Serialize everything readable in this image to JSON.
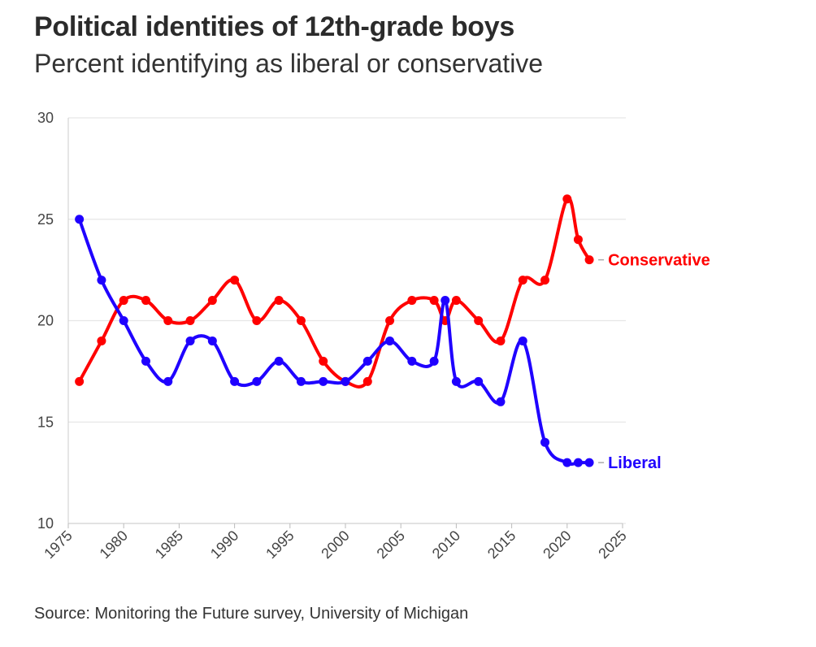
{
  "header": {
    "title": "Political identities of 12th-grade boys",
    "subtitle": "Percent identifying as liberal or conservative"
  },
  "footer": {
    "source": "Source: Monitoring the Future survey, University of Michigan"
  },
  "chart_data": {
    "type": "line",
    "title": "Political identities of 12th-grade boys",
    "subtitle": "Percent identifying as liberal or conservative",
    "xlabel": "",
    "ylabel": "",
    "xlim": [
      1975,
      2025
    ],
    "ylim": [
      10,
      30
    ],
    "x_ticks": [
      1975,
      1980,
      1985,
      1990,
      1995,
      2000,
      2005,
      2010,
      2015,
      2020,
      2025
    ],
    "y_ticks": [
      10,
      15,
      20,
      25,
      30
    ],
    "grid": "horizontal",
    "legend": "direct labels at line ends",
    "series": [
      {
        "name": "Conservative",
        "color": "#ff0000",
        "x": [
          1976,
          1978,
          1980,
          1982,
          1984,
          1986,
          1988,
          1990,
          1992,
          1994,
          1996,
          1998,
          2000,
          2002,
          2004,
          2006,
          2008,
          2009,
          2010,
          2012,
          2014,
          2016,
          2018,
          2020,
          2021,
          2022
        ],
        "values": [
          17,
          19,
          21,
          21,
          20,
          20,
          21,
          22,
          20,
          21,
          20,
          18,
          17,
          17,
          20,
          21,
          21,
          20,
          21,
          20,
          19,
          22,
          22,
          26,
          24,
          23
        ]
      },
      {
        "name": "Liberal",
        "color": "#1f00ff",
        "x": [
          1976,
          1978,
          1980,
          1982,
          1984,
          1986,
          1988,
          1990,
          1992,
          1994,
          1996,
          1998,
          2000,
          2002,
          2004,
          2006,
          2008,
          2009,
          2010,
          2012,
          2014,
          2016,
          2018,
          2020,
          2021,
          2022
        ],
        "values": [
          25,
          22,
          20,
          18,
          17,
          19,
          19,
          17,
          17,
          18,
          17,
          17,
          17,
          18,
          19,
          18,
          18,
          21,
          17,
          17,
          16,
          19,
          14,
          13,
          13,
          13
        ]
      }
    ]
  }
}
